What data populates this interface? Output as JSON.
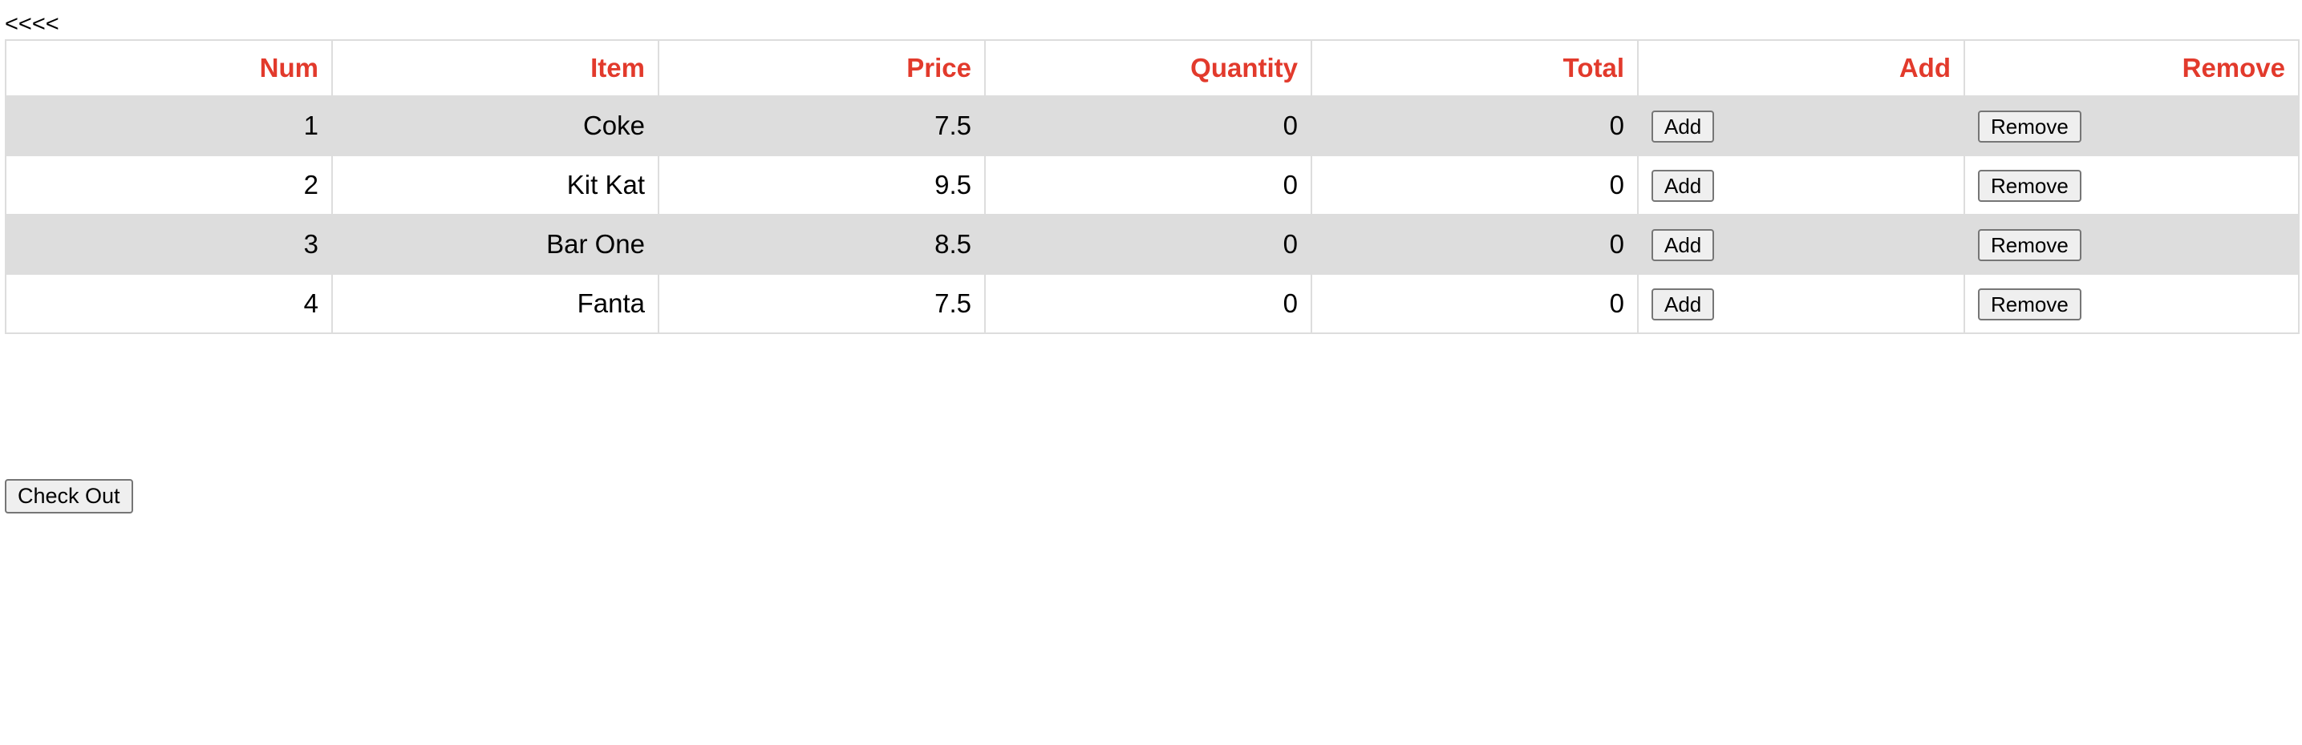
{
  "nav": {
    "back_label": "<<<<"
  },
  "table": {
    "headers": [
      "Num",
      "Item",
      "Price",
      "Quantity",
      "Total",
      "Add",
      "Remove"
    ],
    "rows": [
      {
        "num": "1",
        "item": "Coke",
        "price": "7.5",
        "quantity": "0",
        "total": "0",
        "add_label": "Add",
        "remove_label": "Remove"
      },
      {
        "num": "2",
        "item": "Kit Kat",
        "price": "9.5",
        "quantity": "0",
        "total": "0",
        "add_label": "Add",
        "remove_label": "Remove"
      },
      {
        "num": "3",
        "item": "Bar One",
        "price": "8.5",
        "quantity": "0",
        "total": "0",
        "add_label": "Add",
        "remove_label": "Remove"
      },
      {
        "num": "4",
        "item": "Fanta",
        "price": "7.5",
        "quantity": "0",
        "total": "0",
        "add_label": "Add",
        "remove_label": "Remove"
      }
    ]
  },
  "checkout": {
    "label": "Check Out"
  },
  "colors": {
    "header_text": "#e23a2c",
    "striped_row": "#dddddd",
    "border": "#dddddd"
  }
}
